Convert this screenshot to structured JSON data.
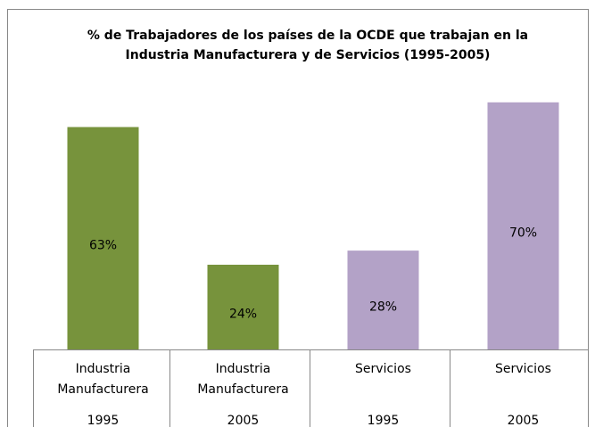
{
  "chart_data": {
    "type": "bar",
    "title": [
      "% de Trabajadores  de los países de la OCDE que trabajan  en la",
      "Industria  Manufacturera  y de Servicios (1995-2005)"
    ],
    "categories": [
      [
        "Industria",
        "Manufacturera",
        "1995"
      ],
      [
        "Industria",
        "Manufacturera",
        "2005"
      ],
      [
        "Servicios",
        "1995"
      ],
      [
        "Servicios",
        "2005"
      ]
    ],
    "values": [
      63,
      24,
      28,
      70
    ],
    "value_labels": [
      "63%",
      "24%",
      "28%",
      "70%"
    ],
    "colors": [
      "#77933c",
      "#77933c",
      "#b3a2c7",
      "#b3a2c7"
    ],
    "ylim": [
      0,
      75
    ]
  }
}
